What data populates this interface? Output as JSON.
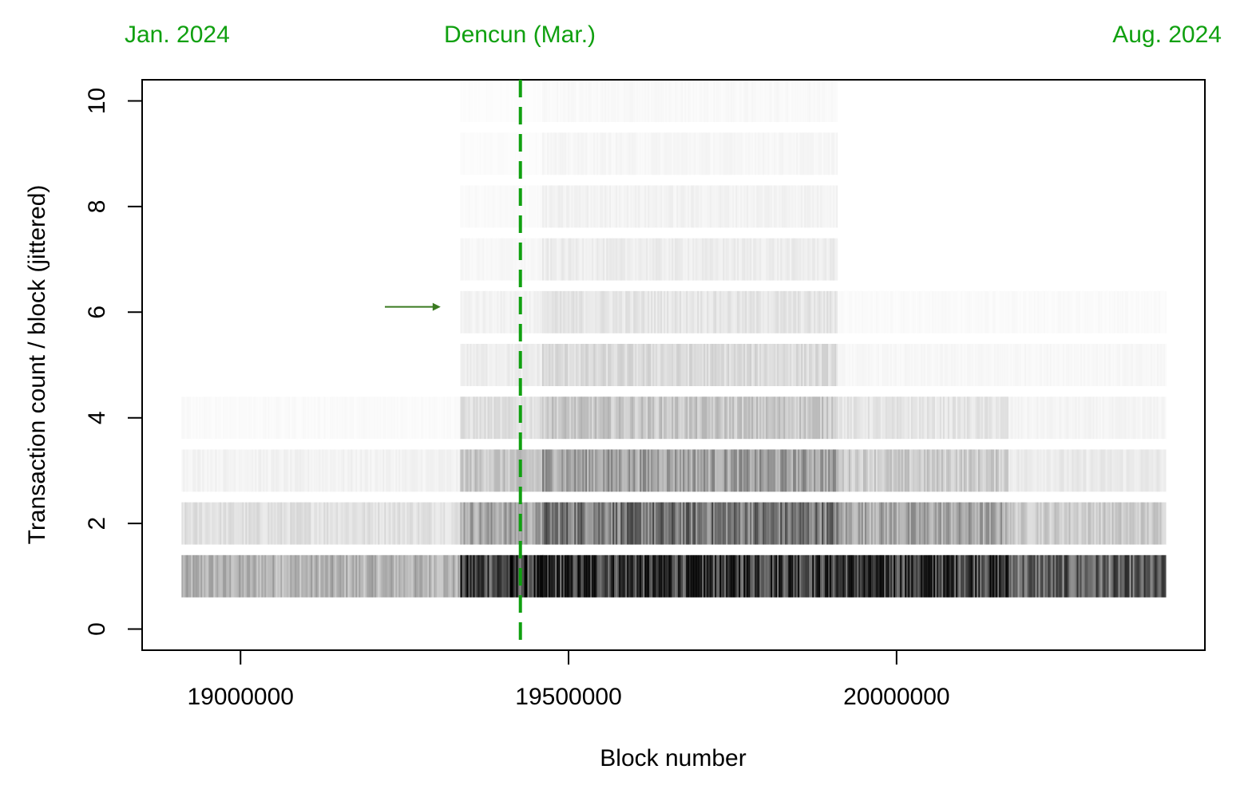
{
  "chart_data": {
    "type": "scatter",
    "xlabel": "Block number",
    "ylabel": "Transaction count / block (jittered)",
    "xlim": [
      18850000,
      20470000
    ],
    "ylim": [
      -0.4,
      10.4
    ],
    "x_ticks": [
      19000000,
      19500000,
      20000000
    ],
    "x_tick_labels": [
      "19000000",
      "19500000",
      "20000000"
    ],
    "y_ticks": [
      0,
      2,
      4,
      6,
      8,
      10
    ],
    "y_tick_labels": [
      "0",
      "2",
      "4",
      "6",
      "8",
      "10"
    ],
    "x_data_range": [
      18910000,
      20410000
    ],
    "jitter_half_width": 0.4,
    "point_color": "#000000",
    "density_bands": [
      {
        "y": 1,
        "segments": [
          [
            18910000,
            19335000,
            0.3
          ],
          [
            19335000,
            19460000,
            0.75
          ],
          [
            19460000,
            20170000,
            0.85
          ],
          [
            20170000,
            20410000,
            0.6
          ]
        ]
      },
      {
        "y": 2,
        "segments": [
          [
            18910000,
            19335000,
            0.12
          ],
          [
            19335000,
            19460000,
            0.35
          ],
          [
            19460000,
            19910000,
            0.55
          ],
          [
            19910000,
            20170000,
            0.35
          ],
          [
            20170000,
            20410000,
            0.2
          ]
        ]
      },
      {
        "y": 3,
        "segments": [
          [
            18910000,
            19335000,
            0.05
          ],
          [
            19335000,
            19460000,
            0.22
          ],
          [
            19460000,
            19910000,
            0.38
          ],
          [
            19910000,
            20170000,
            0.2
          ],
          [
            20170000,
            20410000,
            0.08
          ]
        ]
      },
      {
        "y": 4,
        "segments": [
          [
            18910000,
            19335000,
            0.02
          ],
          [
            19335000,
            19460000,
            0.12
          ],
          [
            19460000,
            19910000,
            0.22
          ],
          [
            19910000,
            20170000,
            0.1
          ],
          [
            20170000,
            20410000,
            0.04
          ]
        ]
      },
      {
        "y": 5,
        "segments": [
          [
            19335000,
            19460000,
            0.07
          ],
          [
            19460000,
            19910000,
            0.14
          ],
          [
            19910000,
            20410000,
            0.03
          ]
        ]
      },
      {
        "y": 6,
        "segments": [
          [
            19335000,
            19460000,
            0.05
          ],
          [
            19460000,
            19910000,
            0.1
          ],
          [
            19910000,
            20410000,
            0.02
          ]
        ]
      },
      {
        "y": 7,
        "segments": [
          [
            19335000,
            19460000,
            0.03
          ],
          [
            19460000,
            19910000,
            0.07
          ]
        ]
      },
      {
        "y": 8,
        "segments": [
          [
            19335000,
            19460000,
            0.02
          ],
          [
            19460000,
            19910000,
            0.05
          ]
        ]
      },
      {
        "y": 9,
        "segments": [
          [
            19335000,
            19460000,
            0.015
          ],
          [
            19460000,
            19910000,
            0.035
          ]
        ]
      },
      {
        "y": 10,
        "segments": [
          [
            19335000,
            19460000,
            0.01
          ],
          [
            19460000,
            19910000,
            0.025
          ]
        ]
      }
    ],
    "vertical_line": {
      "x": 19426589,
      "color": "#10a010",
      "style": "dashed"
    },
    "top_annotations": [
      {
        "label": "Jan. 2024",
        "color": "#10a010"
      },
      {
        "label": "Dencun (Mar.)",
        "color": "#10a010"
      },
      {
        "label": "Aug. 2024",
        "color": "#10a010"
      }
    ],
    "arrow_annotation": {
      "x_from": 19220000,
      "x_to": 19305000,
      "y": 6.1,
      "color": "#3a7a20"
    }
  }
}
